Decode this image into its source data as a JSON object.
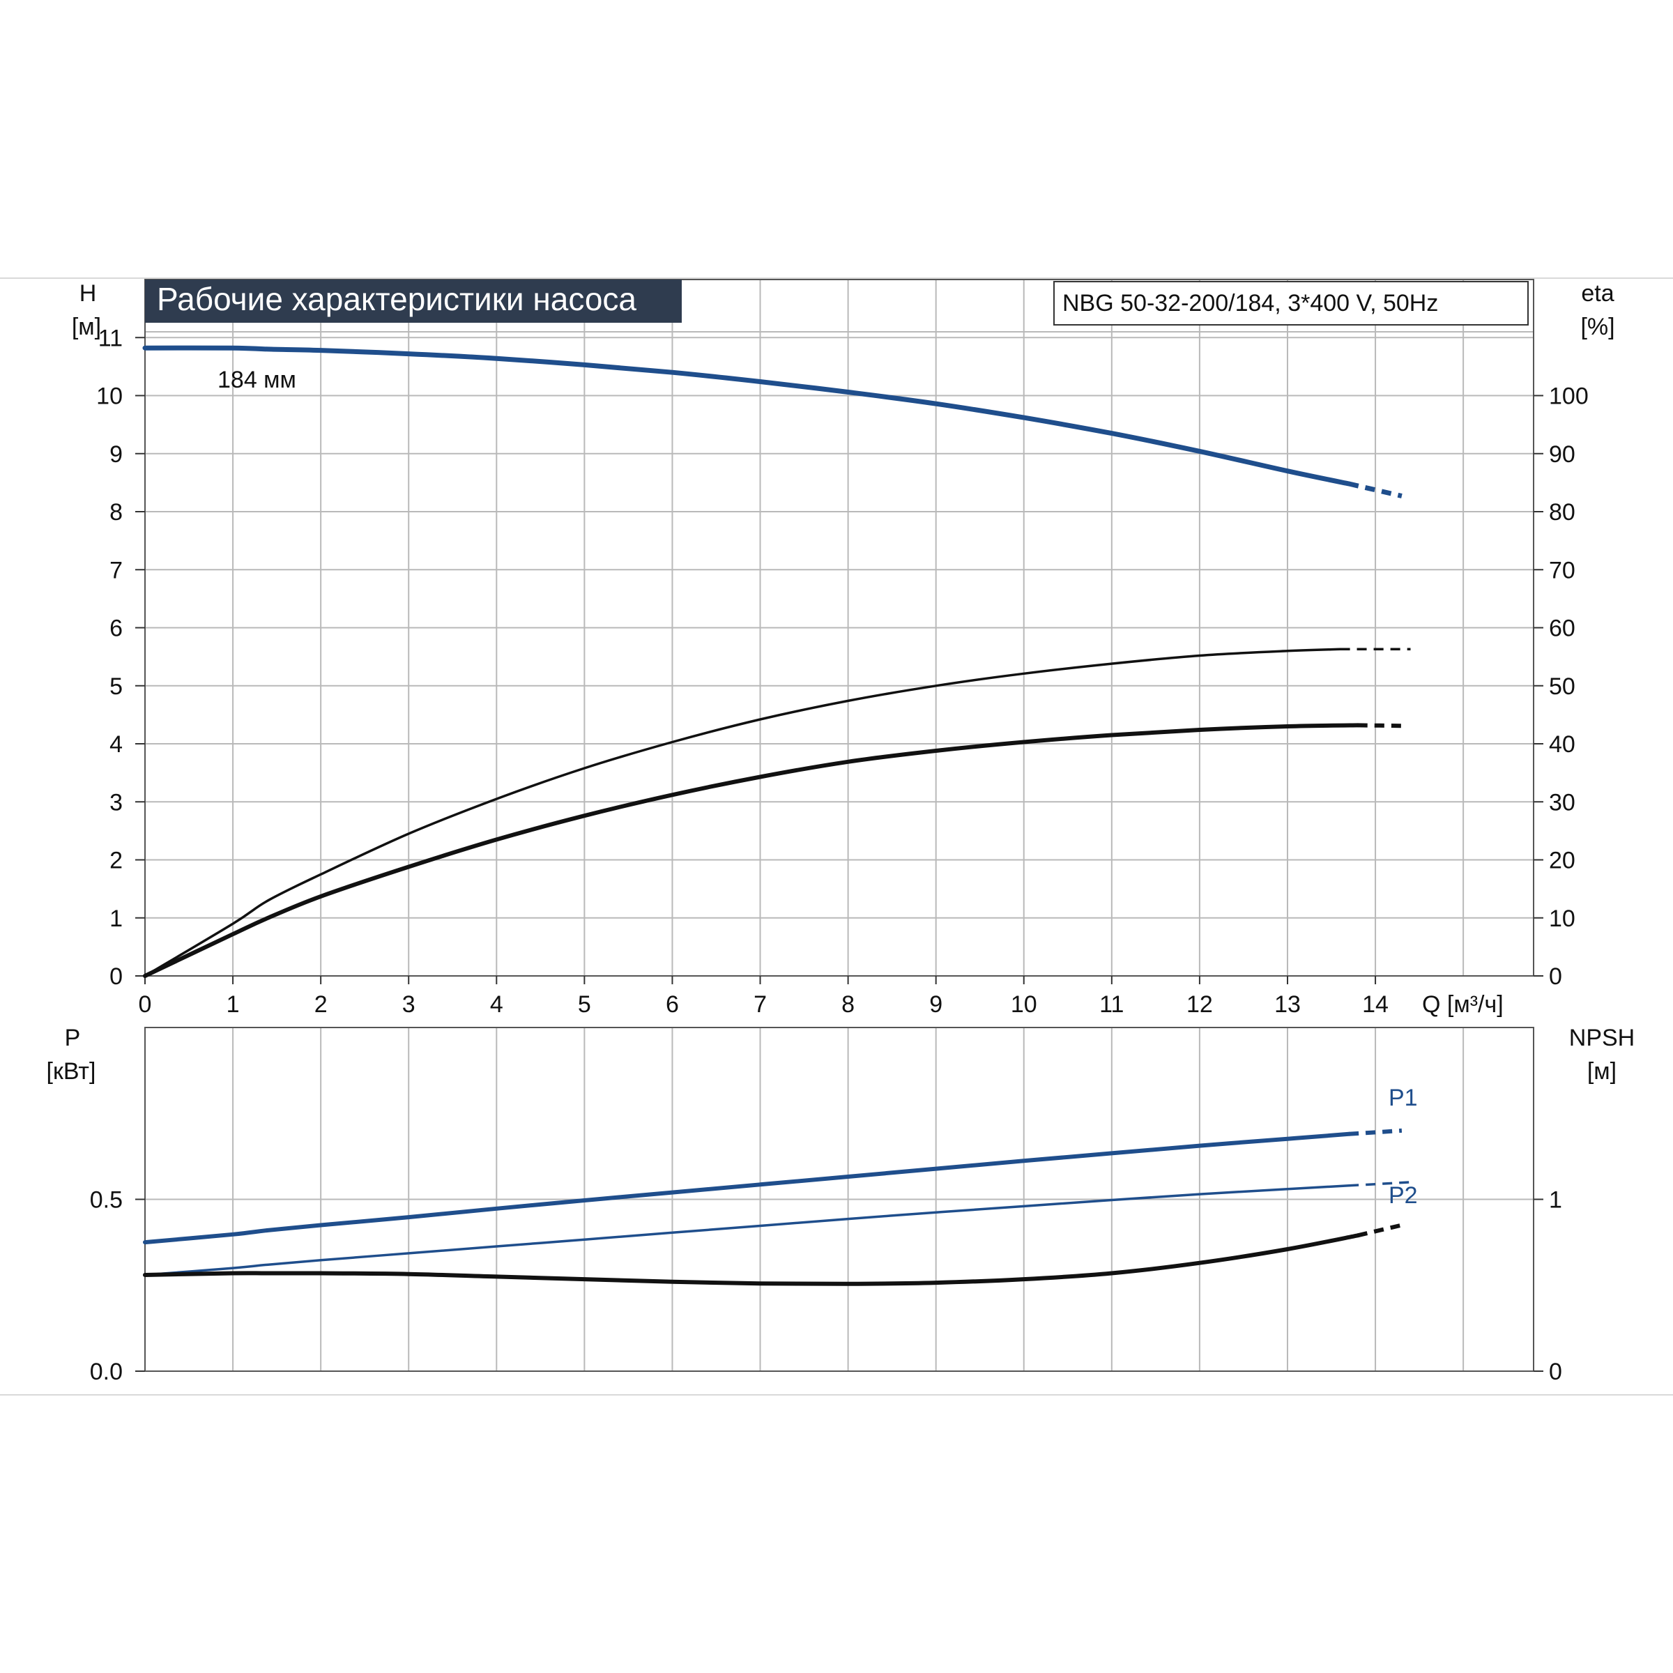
{
  "colors": {
    "accent_blue": "#1f4e8c",
    "curve_black": "#111111",
    "grid": "#b9b9b9",
    "title_bg": "#2f3c4f",
    "title_fg": "#ffffff"
  },
  "chart_data": [
    {
      "type": "line",
      "title": "Рабочие характеристики насоса",
      "subtitle": "NBG 50-32-200/184, 3*400 V, 50Hz",
      "xlabel": "Q [м³/ч]",
      "ylabel_left": [
        "H",
        "[м]"
      ],
      "ylabel_right": [
        "eta",
        "[%]"
      ],
      "xlim": [
        0,
        15.8
      ],
      "ylim_left": [
        0,
        12
      ],
      "ylim_right": [
        0,
        120
      ],
      "x_ticks": [
        "0",
        "1",
        "2",
        "3",
        "4",
        "5",
        "6",
        "7",
        "8",
        "9",
        "10",
        "11",
        "12",
        "13",
        "14"
      ],
      "y_ticks_left": [
        "0",
        "1",
        "2",
        "3",
        "4",
        "5",
        "6",
        "7",
        "8",
        "9",
        "10",
        "11"
      ],
      "y_ticks_right": [
        "0",
        "10",
        "20",
        "30",
        "40",
        "50",
        "60",
        "70",
        "80",
        "90",
        "100"
      ],
      "grid": true,
      "annotations": [
        {
          "text": "184 мм",
          "x": 1.4,
          "y": 11.1
        }
      ],
      "series": [
        {
          "name": "184 мм",
          "axis": "left",
          "color": "#1f4e8c",
          "dashed_from": 13.7,
          "points": [
            [
              0,
              10.82
            ],
            [
              1,
              10.82
            ],
            [
              1.4,
              10.8
            ],
            [
              2,
              10.78
            ],
            [
              3,
              10.72
            ],
            [
              4,
              10.64
            ],
            [
              5,
              10.53
            ],
            [
              6,
              10.4
            ],
            [
              7,
              10.24
            ],
            [
              8,
              10.06
            ],
            [
              9,
              9.86
            ],
            [
              10,
              9.62
            ],
            [
              11,
              9.35
            ],
            [
              12,
              9.04
            ],
            [
              13,
              8.7
            ],
            [
              13.7,
              8.48
            ],
            [
              14.3,
              8.27
            ]
          ]
        },
        {
          "axis": "right",
          "color": "#111111",
          "dashed_from": 13.6,
          "points": [
            [
              0,
              0
            ],
            [
              1,
              9
            ],
            [
              1.4,
              13
            ],
            [
              2,
              17.5
            ],
            [
              3,
              24.5
            ],
            [
              4,
              30.5
            ],
            [
              5,
              35.8
            ],
            [
              6,
              40.3
            ],
            [
              7,
              44.2
            ],
            [
              8,
              47.4
            ],
            [
              9,
              50
            ],
            [
              10,
              52.1
            ],
            [
              11,
              53.8
            ],
            [
              12,
              55.2
            ],
            [
              13,
              56
            ],
            [
              13.6,
              56.3
            ],
            [
              14.4,
              56.3
            ]
          ]
        },
        {
          "axis": "right",
          "color": "#111111",
          "dashed_from": 13.8,
          "points": [
            [
              0,
              0
            ],
            [
              1,
              7.2
            ],
            [
              1.4,
              10
            ],
            [
              2,
              13.7
            ],
            [
              3,
              18.8
            ],
            [
              4,
              23.5
            ],
            [
              5,
              27.6
            ],
            [
              6,
              31.2
            ],
            [
              7,
              34.3
            ],
            [
              8,
              36.9
            ],
            [
              9,
              38.8
            ],
            [
              10,
              40.3
            ],
            [
              11,
              41.5
            ],
            [
              12,
              42.4
            ],
            [
              13,
              43
            ],
            [
              13.8,
              43.2
            ],
            [
              14.3,
              43.1
            ]
          ]
        }
      ]
    },
    {
      "type": "line",
      "ylabel_left": [
        "P",
        "[кВт]"
      ],
      "ylabel_right": [
        "NPSH",
        "[м]"
      ],
      "xlim": [
        0,
        15.8
      ],
      "ylim_left": [
        0,
        1
      ],
      "ylim_right": [
        0,
        2
      ],
      "y_ticks_left": [
        "0.0",
        "0.5"
      ],
      "y_ticks_left_values": [
        0,
        0.5
      ],
      "y_ticks_right": [
        "0",
        "1"
      ],
      "y_ticks_right_values": [
        0,
        1
      ],
      "grid": true,
      "series": [
        {
          "name": "P1",
          "axis": "left",
          "color": "#1f4e8c",
          "dashed_from": 13.7,
          "points": [
            [
              0,
              0.375
            ],
            [
              1,
              0.398
            ],
            [
              1.4,
              0.41
            ],
            [
              2,
              0.425
            ],
            [
              3,
              0.448
            ],
            [
              4,
              0.473
            ],
            [
              5,
              0.497
            ],
            [
              6,
              0.52
            ],
            [
              7,
              0.543
            ],
            [
              8,
              0.566
            ],
            [
              9,
              0.589
            ],
            [
              10,
              0.612
            ],
            [
              11,
              0.634
            ],
            [
              12,
              0.656
            ],
            [
              13,
              0.676
            ],
            [
              13.7,
              0.69
            ],
            [
              14.3,
              0.7
            ]
          ]
        },
        {
          "name": "P2",
          "axis": "left",
          "color": "#1f4e8c",
          "dashed_from": 13.7,
          "points": [
            [
              0,
              0.28
            ],
            [
              1,
              0.3
            ],
            [
              1.4,
              0.31
            ],
            [
              2,
              0.323
            ],
            [
              3,
              0.343
            ],
            [
              4,
              0.363
            ],
            [
              5,
              0.383
            ],
            [
              6,
              0.403
            ],
            [
              7,
              0.423
            ],
            [
              8,
              0.443
            ],
            [
              9,
              0.462
            ],
            [
              10,
              0.48
            ],
            [
              11,
              0.498
            ],
            [
              12,
              0.515
            ],
            [
              13,
              0.53
            ],
            [
              13.7,
              0.54
            ],
            [
              14.4,
              0.55
            ]
          ]
        },
        {
          "axis": "right",
          "color": "#111111",
          "dashed_from": 13.8,
          "points": [
            [
              0,
              0.56
            ],
            [
              1,
              0.57
            ],
            [
              1.4,
              0.57
            ],
            [
              2,
              0.57
            ],
            [
              3,
              0.565
            ],
            [
              4,
              0.55
            ],
            [
              5,
              0.535
            ],
            [
              6,
              0.52
            ],
            [
              7,
              0.51
            ],
            [
              8,
              0.508
            ],
            [
              9,
              0.515
            ],
            [
              10,
              0.535
            ],
            [
              11,
              0.57
            ],
            [
              12,
              0.63
            ],
            [
              13,
              0.71
            ],
            [
              13.8,
              0.79
            ],
            [
              14.3,
              0.85
            ]
          ]
        }
      ]
    }
  ]
}
